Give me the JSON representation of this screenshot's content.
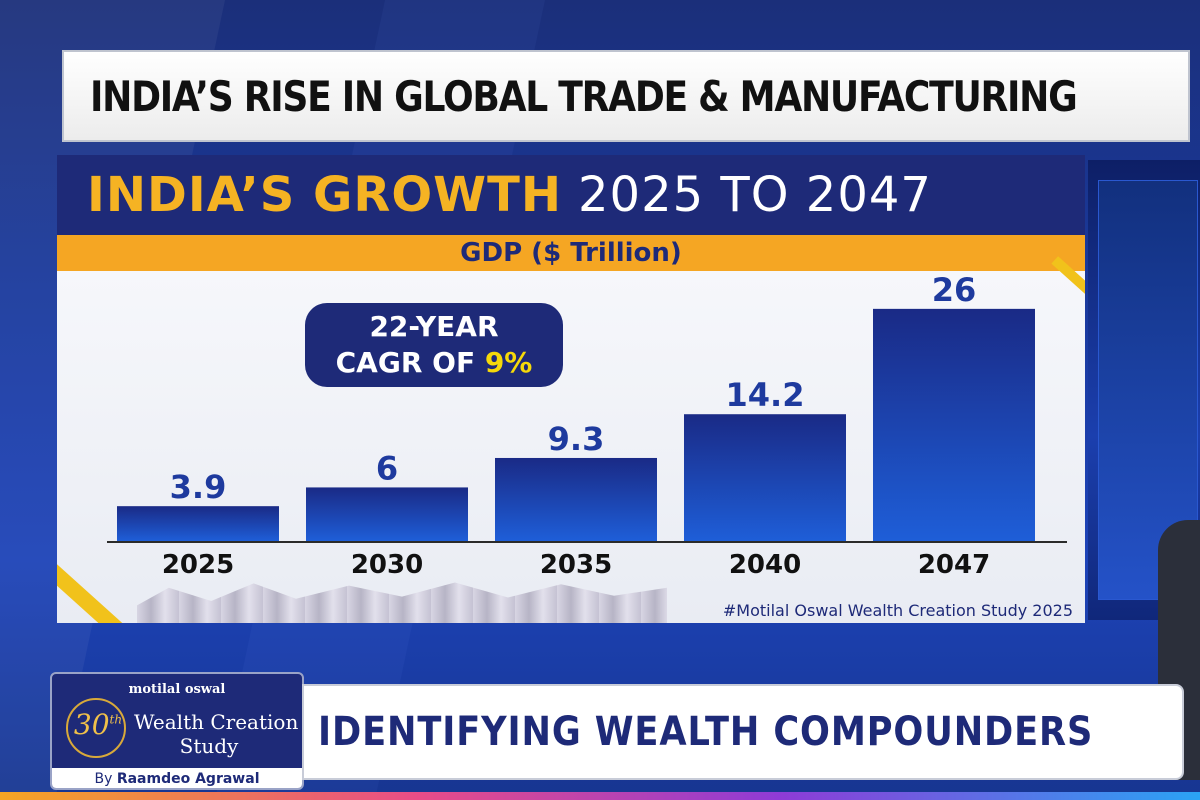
{
  "headline": "INDIA’S RISE IN GLOBAL TRADE & MANUFACTURING",
  "panel": {
    "title_highlight": "INDIA’S GROWTH",
    "title_rest": "2025 TO 2047",
    "subtitle": "GDP ($ Trillion)",
    "cagr_line1": "22-YEAR",
    "cagr_line2": "CAGR OF",
    "cagr_value": "9%",
    "source": "#Motilal Oswal Wealth Creation Study 2025"
  },
  "chart_data": {
    "type": "bar",
    "title": "INDIA’S GROWTH 2025 TO 2047",
    "ylabel": "GDP ($ Trillion)",
    "xlabel": "",
    "categories": [
      "2025",
      "2030",
      "2035",
      "2040",
      "2047"
    ],
    "values": [
      3.9,
      6,
      9.3,
      14.2,
      26
    ],
    "value_labels": [
      "3.9",
      "6",
      "9.3",
      "14.2",
      "26"
    ],
    "ylim": [
      0,
      28
    ],
    "annotation": "22-YEAR CAGR OF 9%"
  },
  "lower_third": {
    "brand": "motilal oswal",
    "edition_number": "30",
    "edition_suffix": "th",
    "study_line1": "Wealth Creation",
    "study_line2": "Study",
    "byline_prefix": "By",
    "byline_name": "Raamdeo Agrawal",
    "ticker": "IDENTIFYING WEALTH COMPOUNDERS"
  },
  "colors": {
    "navy": "#1e2a78",
    "gold": "#f5a623",
    "yellow": "#f5d90a",
    "bar_top": "#1a2a86",
    "bar_bottom": "#1e5ed8"
  }
}
